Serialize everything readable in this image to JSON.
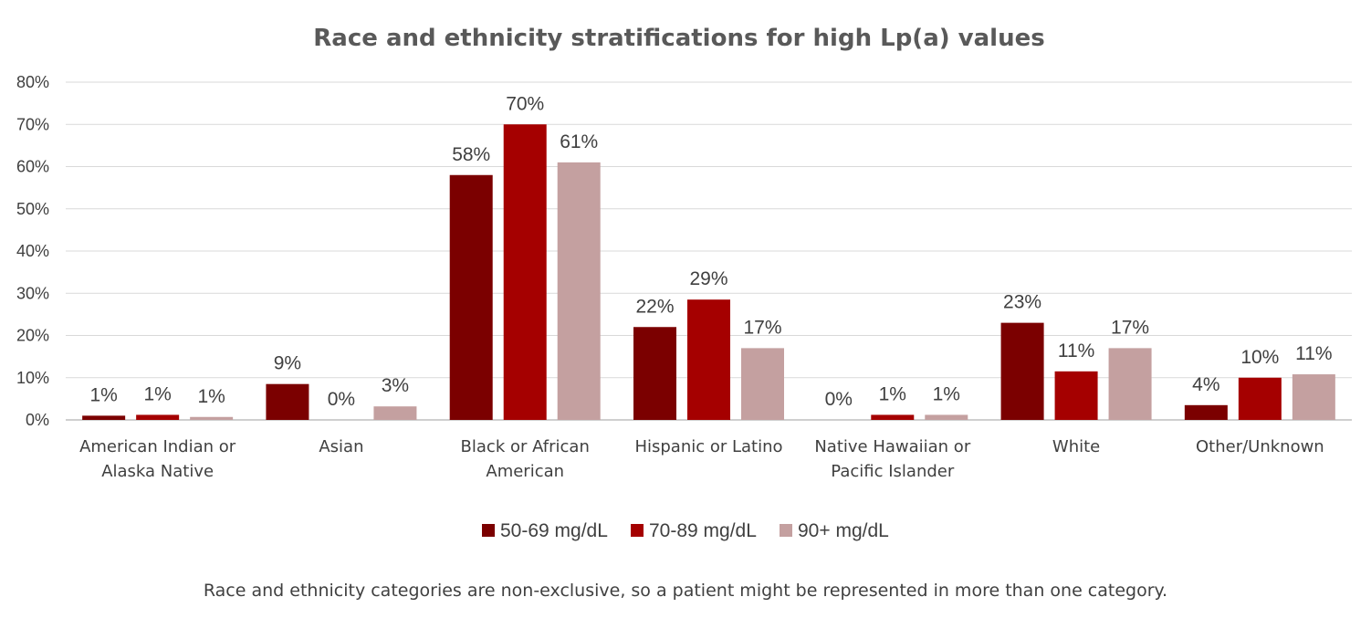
{
  "chart_data": {
    "type": "bar",
    "title": "Race and ethnicity stratifications for high Lp(a) values",
    "xlabel": "",
    "ylabel": "",
    "ylim": [
      0,
      80
    ],
    "yticks": [
      0,
      10,
      20,
      30,
      40,
      50,
      60,
      70,
      80
    ],
    "ytick_labels": [
      "0%",
      "10%",
      "20%",
      "30%",
      "40%",
      "50%",
      "60%",
      "70%",
      "80%"
    ],
    "grid": true,
    "legend_position": "bottom",
    "categories": [
      [
        "American Indian or",
        "Alaska Native"
      ],
      [
        "Asian"
      ],
      [
        "Black or African",
        "American"
      ],
      [
        "Hispanic or Latino"
      ],
      [
        "Native Hawaiian or",
        "Pacific Islander"
      ],
      [
        "White"
      ],
      [
        "Other/Unknown"
      ]
    ],
    "series": [
      {
        "name": "50-69 mg/dL",
        "color": "#7b0000",
        "values": [
          1.0,
          8.5,
          58,
          22,
          0,
          23,
          3.5
        ],
        "labels": [
          "1%",
          "9%",
          "58%",
          "22%",
          "0%",
          "23%",
          "4%"
        ]
      },
      {
        "name": "70-89 mg/dL",
        "color": "#a50000",
        "values": [
          1.2,
          0,
          70,
          28.5,
          1.2,
          11.5,
          10
        ],
        "labels": [
          "1%",
          "0%",
          "70%",
          "29%",
          "1%",
          "11%",
          "10%"
        ]
      },
      {
        "name": "90+ mg/dL",
        "color": "#c4a0a0",
        "values": [
          0.7,
          3.2,
          61,
          17,
          1.2,
          17,
          10.8
        ],
        "labels": [
          "1%",
          "3%",
          "61%",
          "17%",
          "1%",
          "17%",
          "11%"
        ]
      }
    ],
    "footnote": "Race and ethnicity categories are non-exclusive, so a patient might be represented in more than one category."
  }
}
